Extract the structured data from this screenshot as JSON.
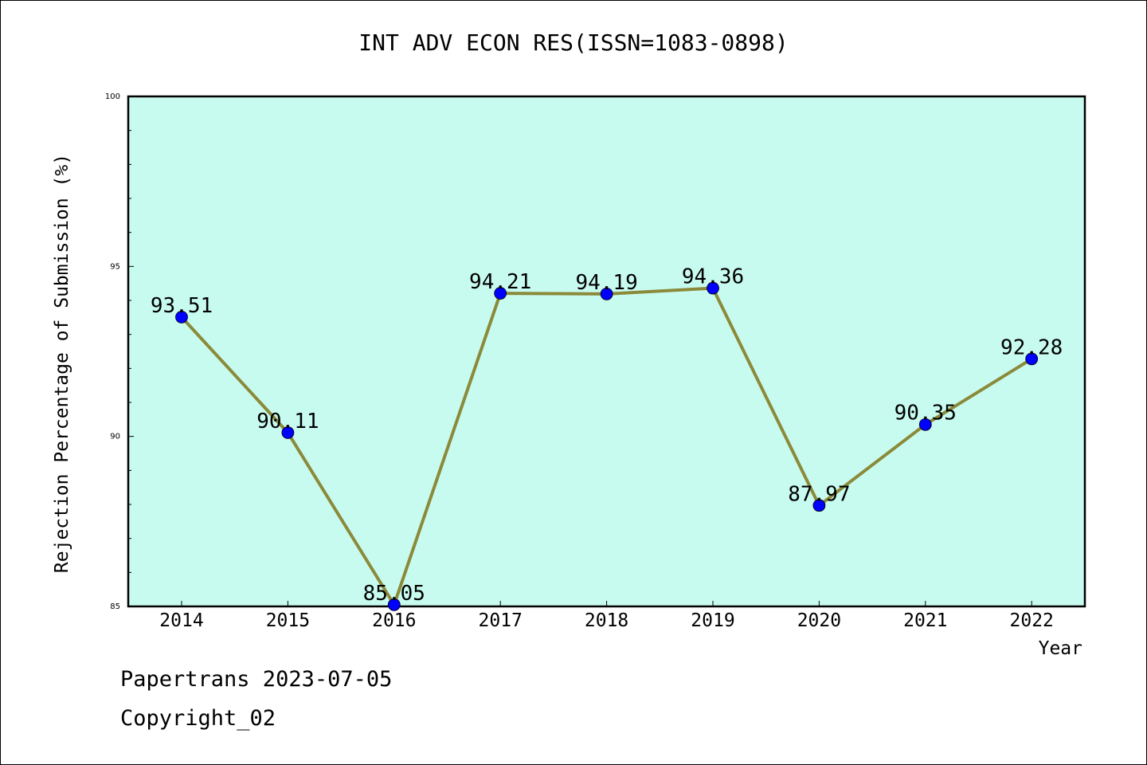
{
  "chart_data": {
    "type": "line",
    "title": "INT ADV ECON RES(ISSN=1083-0898)",
    "xlabel": "Year",
    "ylabel": "Rejection Percentage of Submission (%)",
    "x": [
      "2014",
      "2015",
      "2016",
      "2017",
      "2018",
      "2019",
      "2020",
      "2021",
      "2022"
    ],
    "values": [
      93.51,
      90.11,
      85.05,
      94.21,
      94.19,
      94.36,
      87.97,
      90.35,
      92.28
    ],
    "labels": [
      "93.51",
      "90.11",
      "85.05",
      "94.21",
      "94.19",
      "94.36",
      "87.97",
      "90.35",
      "92.28"
    ],
    "ylim": [
      85,
      100
    ],
    "yticks": [
      "85",
      "90",
      "95",
      "100"
    ],
    "grid": false,
    "colors": {
      "background": "#c8fbef",
      "line": "#8b8a3a",
      "marker": "#0000ff"
    }
  },
  "footer": {
    "line1": "Papertrans 2023-07-05",
    "line2": "Copyright_02"
  }
}
